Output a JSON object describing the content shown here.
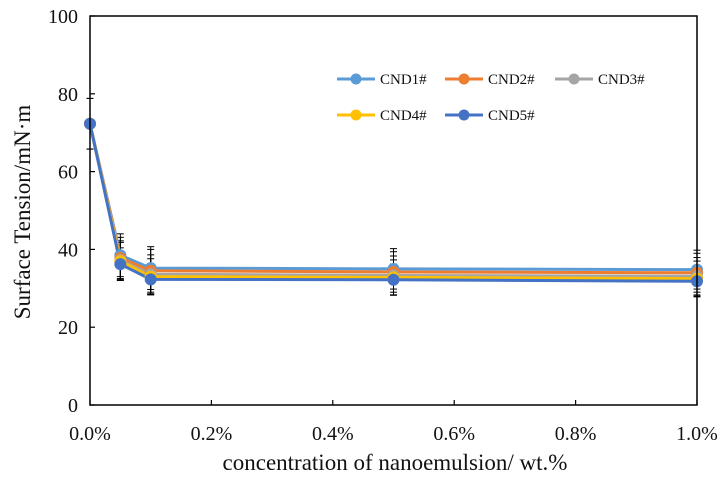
{
  "chart_data": {
    "type": "line",
    "title": "",
    "xlabel": "concentration  of  nanoemulsion/  wt.%",
    "ylabel": "Surface  Tension/mN·m",
    "x": [
      0.0,
      0.05,
      0.1,
      0.5,
      1.0
    ],
    "xlim": [
      0,
      1.0
    ],
    "ylim": [
      0,
      100
    ],
    "x_ticks": [
      0,
      0.2,
      0.4,
      0.6,
      0.8,
      1.0
    ],
    "x_tick_labels": [
      "0.0%",
      "0.2%",
      "0.4%",
      "0.6%",
      "0.8%",
      "1.0%"
    ],
    "y_ticks": [
      0,
      20,
      40,
      60,
      80,
      100
    ],
    "y_tick_labels": [
      "0",
      "20",
      "40",
      "60",
      "80",
      "100"
    ],
    "grid": false,
    "legend_position": "top-right",
    "error_bars": true,
    "series": [
      {
        "name": "CND1#",
        "color": "#5b9bd5",
        "values": [
          72.3,
          38.5,
          35.2,
          35.0,
          34.8
        ],
        "errors": [
          6.5,
          5.5,
          5.5,
          5.2,
          5.0
        ]
      },
      {
        "name": "CND2#",
        "color": "#ed7d31",
        "values": [
          72.3,
          37.8,
          34.5,
          34.2,
          34.0
        ],
        "errors": [
          6.5,
          5.3,
          5.5,
          5.2,
          5.0
        ]
      },
      {
        "name": "CND3#",
        "color": "#a5a5a5",
        "values": [
          72.3,
          37.2,
          33.6,
          33.3,
          33.1
        ],
        "errors": [
          6.5,
          5.0,
          5.0,
          5.0,
          4.8
        ]
      },
      {
        "name": "CND4#",
        "color": "#ffc000",
        "values": [
          72.3,
          37.0,
          33.0,
          32.8,
          32.5
        ],
        "errors": [
          6.5,
          4.8,
          4.6,
          4.5,
          4.5
        ]
      },
      {
        "name": "CND5#",
        "color": "#4472c4",
        "values": [
          72.3,
          36.2,
          32.3,
          32.2,
          31.8
        ],
        "errors": [
          6.5,
          4.2,
          4.0,
          4.0,
          4.0
        ]
      }
    ]
  }
}
